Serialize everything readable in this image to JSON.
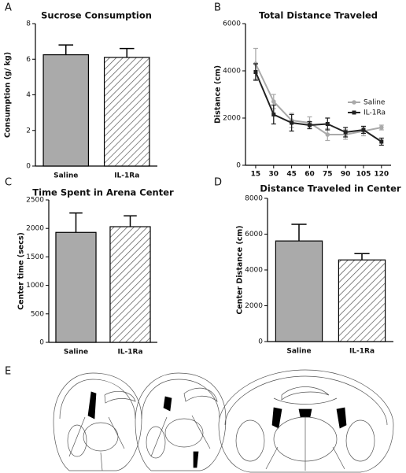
{
  "chart_data": [
    {
      "type": "bar",
      "panel_label": "A",
      "title": "Sucrose Consumption",
      "y_label": "Consumption (g/ kg)",
      "categories": [
        "Saline",
        "IL-1Ra"
      ],
      "values": [
        6.25,
        6.1
      ],
      "errors": [
        0.55,
        0.5
      ],
      "fills": [
        "#aaaaaa",
        "hatch"
      ],
      "ylim": [
        0,
        8
      ],
      "yticks": [
        0,
        2,
        4,
        6,
        8
      ]
    },
    {
      "type": "line",
      "panel_label": "B",
      "title": "Total Distance Traveled",
      "y_label": "Distance (cm)",
      "x": [
        15,
        30,
        45,
        60,
        75,
        90,
        105,
        120
      ],
      "xlim": [
        6.5,
        128
      ],
      "xticks": [
        15,
        30,
        45,
        60,
        75,
        90,
        105,
        120
      ],
      "ylim": [
        0,
        6000
      ],
      "yticks": [
        0,
        2000,
        4000,
        6000
      ],
      "legend": "right",
      "series": [
        {
          "name": "Saline",
          "color": "#aaaaaa",
          "marker": "circle",
          "values": [
            4300,
            2700,
            1900,
            1800,
            1300,
            1300,
            1450,
            1600
          ],
          "errors": [
            650,
            300,
            300,
            250,
            250,
            200,
            200,
            100
          ]
        },
        {
          "name": "IL-1Ra",
          "color": "#222222",
          "marker": "square",
          "values": [
            3950,
            2150,
            1800,
            1700,
            1750,
            1400,
            1500,
            1000
          ],
          "errors": [
            350,
            400,
            350,
            150,
            250,
            200,
            150,
            150
          ]
        }
      ]
    },
    {
      "type": "bar",
      "panel_label": "C",
      "title": "Time Spent in Arena  Center",
      "y_label": "Center time (secs)",
      "categories": [
        "Saline",
        "IL-1Ra"
      ],
      "values": [
        1930,
        2030
      ],
      "errors": [
        340,
        190
      ],
      "fills": [
        "#aaaaaa",
        "hatch"
      ],
      "ylim": [
        0,
        2500
      ],
      "yticks": [
        0,
        500,
        1000,
        1500,
        2000,
        2500
      ]
    },
    {
      "type": "bar",
      "panel_label": "D",
      "title": "Distance Traveled in Center",
      "y_label": "Center  Distance (cm)",
      "categories": [
        "Saline",
        "IL-1Ra"
      ],
      "values": [
        5620,
        4560
      ],
      "errors": [
        930,
        350
      ],
      "fills": [
        "#aaaaaa",
        "hatch"
      ],
      "ylim": [
        0,
        8000
      ],
      "yticks": [
        0,
        2000,
        4000,
        6000,
        8000
      ]
    }
  ],
  "panel_e": {
    "label": "E"
  }
}
